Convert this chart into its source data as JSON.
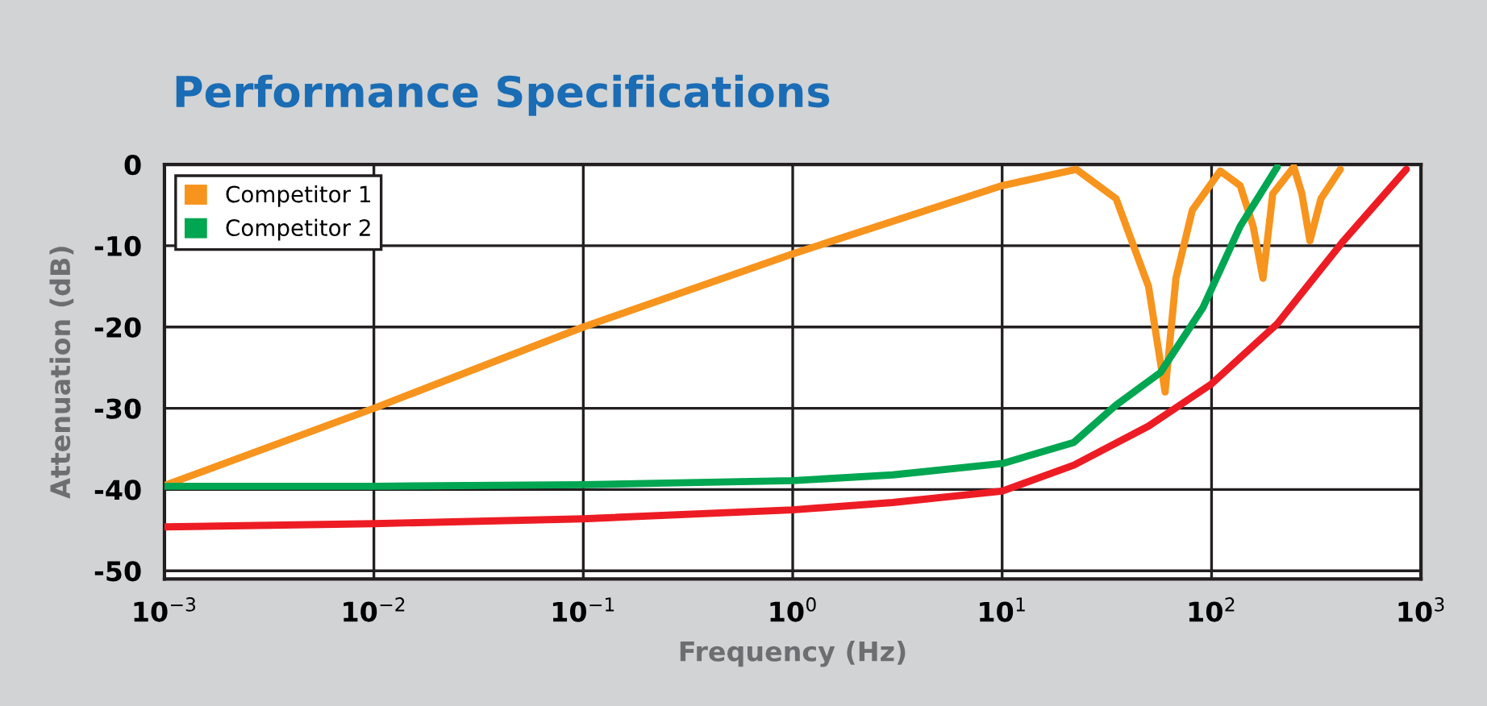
{
  "chart_data": {
    "type": "line",
    "title": "Performance Specifications",
    "xlabel": "Frequency (Hz)",
    "ylabel": "Attenuation (dB)",
    "log": "x",
    "grid": true,
    "legend": "top left",
    "marker": "none",
    "line_style": "solid",
    "xlim": [
      0.001,
      1000
    ],
    "ylim": [
      -51,
      0
    ],
    "xticks": [
      {
        "value": 0.001,
        "label": "10$^{−3}$"
      },
      {
        "value": 0.01,
        "label": "10$^{−2}$"
      },
      {
        "value": 0.1,
        "label": "10$^{−1}$"
      },
      {
        "value": 1,
        "label": "10$^{0}$"
      },
      {
        "value": 10,
        "label": "10$^{1}$"
      },
      {
        "value": 100,
        "label": "10$^{2}$"
      },
      {
        "value": 1000,
        "label": "10$^{3}$"
      }
    ],
    "yticks": [
      0,
      -10,
      -20,
      -30,
      -40,
      -50
    ],
    "series": [
      {
        "name": "Competitor 1",
        "color": "#f7941d",
        "x": [
          0.001,
          0.01,
          0.1,
          1,
          10,
          22.6,
          35,
          50,
          60,
          67.6,
          81,
          110,
          137,
          158,
          176,
          196,
          247,
          270,
          295,
          333,
          412
        ],
        "values": [
          -39.5,
          -30,
          -20,
          -11,
          -2.6,
          -0.6,
          -4.2,
          -15,
          -28,
          -14,
          -5.6,
          -0.8,
          -2.6,
          -7.6,
          -14,
          -3.6,
          -0.3,
          -3.6,
          -9.4,
          -4.2,
          -0.6
        ]
      },
      {
        "name": "Competitor 2",
        "color": "#00a651",
        "x": [
          0.001,
          0.01,
          0.1,
          1,
          3,
          10,
          22,
          35,
          57,
          91,
          137,
          206
        ],
        "values": [
          -39.6,
          -39.6,
          -39.4,
          -38.9,
          -38.2,
          -36.8,
          -34.2,
          -29.6,
          -25.6,
          -17.6,
          -7.6,
          -0.3
        ]
      },
      {
        "color": "#ed1c24",
        "x": [
          0.001,
          0.01,
          0.1,
          1,
          3,
          10,
          22,
          50,
          100,
          206,
          420,
          851
        ],
        "values": [
          -44.6,
          -44.2,
          -43.6,
          -42.5,
          -41.6,
          -40.2,
          -37,
          -32.2,
          -27,
          -19.6,
          -9.6,
          -0.6
        ]
      }
    ]
  }
}
